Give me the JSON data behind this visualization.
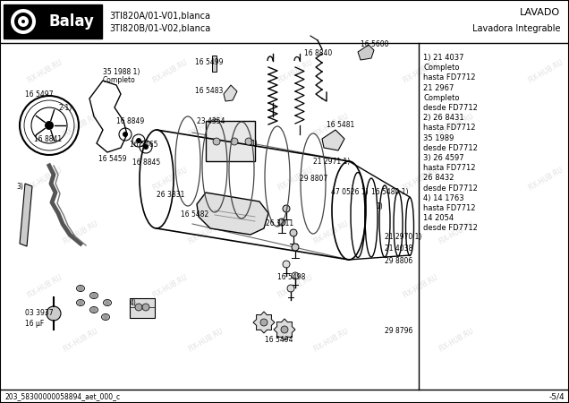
{
  "title_model_line1": "3TI820A/01-V01,blanca",
  "title_model_line2": "3TI820B/01-V02,blanca",
  "brand": "Balay",
  "category_line1": "LAVADO",
  "category_line2": "Lavadora Integrable",
  "page_number": "-5/4",
  "doc_number": "203_58300000058894_aet_000_c",
  "watermark": "FIX-HUB.RU",
  "right_panel_text": "1) 21 4037\n   Completo\n   hasta FD7712\n   21 2967\n   Completo\n   desde FD7712\n2) 26 8431\n   hasta FD7712\n   35 1989\n   desde FD7712\n3) 26 4597\n   hasta FD7712\n   26 8432\n   desde FD7712\n4) 14 1763\n   hasta FD7712\n   14 2054\n   desde FD7712",
  "bg": "#ffffff",
  "black": "#000000",
  "gray": "#888888",
  "lightgray": "#cccccc"
}
